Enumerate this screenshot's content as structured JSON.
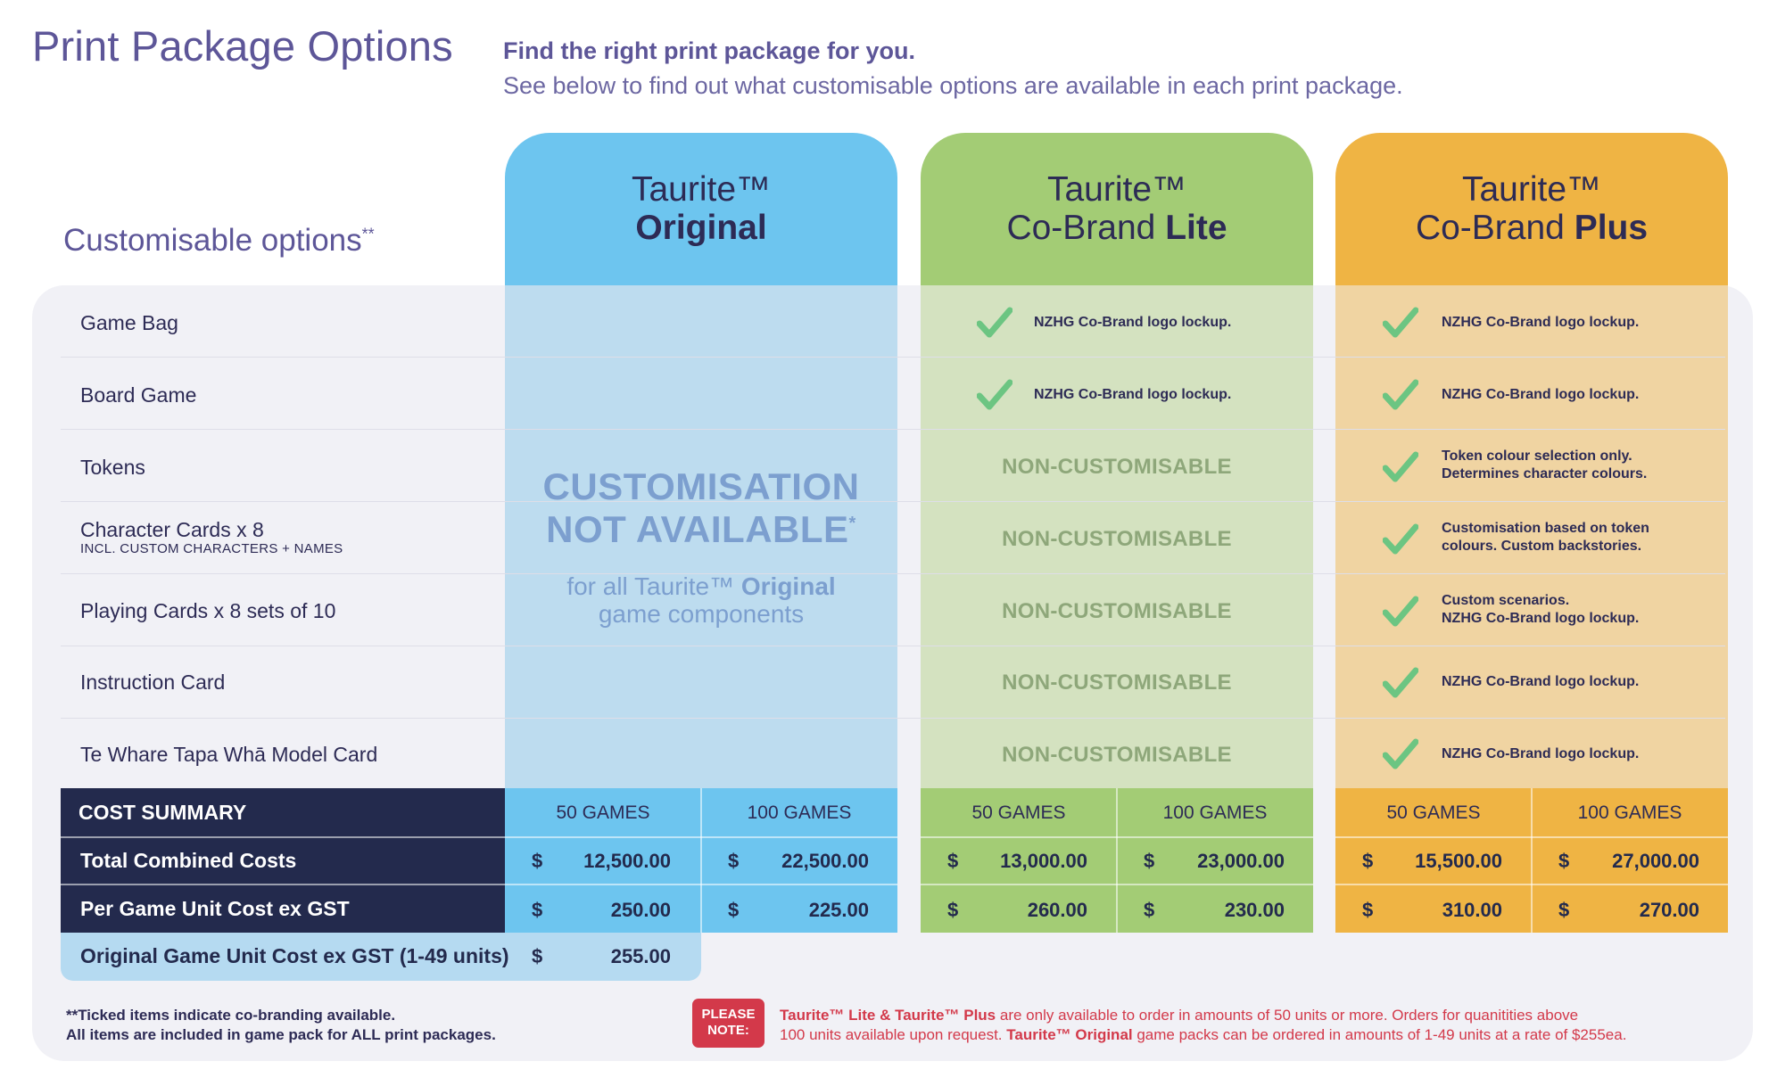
{
  "header": {
    "title": "Print Package Options",
    "subtitle": "Find the right print package for you.",
    "description": "See below to find out what customisable options are available in each print package."
  },
  "options_heading": "Customisable options",
  "options_heading_mark": "**",
  "packages": [
    {
      "line1": "Taurite™",
      "line2_prefix": "",
      "line2_bold": "Original",
      "color": "#6dc5ef"
    },
    {
      "line1": "Taurite™",
      "line2_prefix": "Co-Brand ",
      "line2_bold": "Lite",
      "color": "#a3cc75"
    },
    {
      "line1": "Taurite™",
      "line2_prefix": "Co-Brand ",
      "line2_bold": "Plus",
      "color": "#efb444"
    }
  ],
  "rows": [
    {
      "label": "Game Bag",
      "sub": "",
      "lite": "NZHG Co-Brand logo lockup.",
      "lite_ticked": true,
      "plus": [
        "NZHG Co-Brand logo lockup."
      ]
    },
    {
      "label": "Board Game",
      "sub": "",
      "lite": "NZHG Co-Brand logo lockup.",
      "lite_ticked": true,
      "plus": [
        "NZHG Co-Brand logo lockup."
      ]
    },
    {
      "label": "Tokens",
      "sub": "",
      "lite": "NON-CUSTOMISABLE",
      "lite_ticked": false,
      "plus": [
        "Token colour selection only.",
        "Determines character colours."
      ]
    },
    {
      "label": "Character Cards x 8",
      "sub": "INCL. CUSTOM CHARACTERS + NAMES",
      "lite": "NON-CUSTOMISABLE",
      "lite_ticked": false,
      "plus": [
        "Customisation based on token",
        "colours. Custom backstories."
      ]
    },
    {
      "label": "Playing Cards x 8 sets of 10",
      "sub": "",
      "lite": "NON-CUSTOMISABLE",
      "lite_ticked": false,
      "plus": [
        "Custom scenarios.",
        "NZHG Co-Brand logo lockup."
      ]
    },
    {
      "label": "Instruction Card",
      "sub": "",
      "lite": "NON-CUSTOMISABLE",
      "lite_ticked": false,
      "plus": [
        "NZHG Co-Brand logo lockup."
      ]
    },
    {
      "label": "Te Whare Tapa Whā Model Card",
      "sub": "",
      "lite": "NON-CUSTOMISABLE",
      "lite_ticked": false,
      "plus": [
        "NZHG Co-Brand logo lockup."
      ]
    }
  ],
  "original_unavailable": {
    "line1": "CUSTOMISATION",
    "line2": "NOT AVAILABLE",
    "mark": "*",
    "sub_prefix": "for all Taurite™ ",
    "sub_bold": "Original",
    "sub_line2": "game components"
  },
  "cost_summary": {
    "heading": "COST SUMMARY",
    "quantities": [
      "50 GAMES",
      "100 GAMES",
      "50 GAMES",
      "100 GAMES",
      "50 GAMES",
      "100 GAMES"
    ],
    "currency": "$",
    "total_label": "Total Combined Costs",
    "totals": [
      "12,500.00",
      "22,500.00",
      "13,000.00",
      "23,000.00",
      "15,500.00",
      "27,000.00"
    ],
    "unit_label": "Per Game Unit Cost ex GST",
    "unit_costs": [
      "250.00",
      "225.00",
      "260.00",
      "230.00",
      "310.00",
      "270.00"
    ],
    "original_small_label": "Original Game Unit Cost ex GST (1-49 units)",
    "original_small_cost": "255.00"
  },
  "footnote": {
    "line1": "**Ticked items indicate co-branding available.",
    "line2": "All items are included in game pack for ALL print packages."
  },
  "please_note": {
    "badge_line1": "PLEASE",
    "badge_line2": "NOTE:",
    "l1_bold": "Taurite™ Lite & Taurite™ Plus",
    "l1_rest": " are only available to order in amounts of 50 units or more. Orders for quanitities above",
    "l2_a": "100 units available upon request. ",
    "l2_bold": "Taurite™ Original",
    "l2_b": " game packs can be ordered in amounts of 1-49 units at a rate of $255ea."
  },
  "colors": {
    "title_purple": "#5d5698",
    "navy": "#232a4d",
    "check_green": "#6cc582",
    "warning_red": "#d3394a"
  }
}
